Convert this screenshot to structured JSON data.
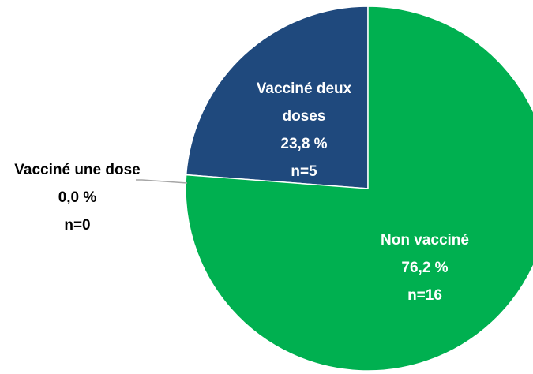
{
  "chart_data": {
    "type": "pie",
    "categories": [
      "Non vacciné",
      "Vacciné une dose",
      "Vacciné deux doses"
    ],
    "values": [
      76.2,
      0.0,
      23.8
    ],
    "value_labels": [
      "76,2 %",
      "0,0 %",
      "23,8 %"
    ],
    "count_labels": [
      "n=16",
      "n=0",
      "n=5"
    ],
    "colors": [
      "#00b050",
      "#7f7f7f",
      "#1f497d"
    ]
  }
}
